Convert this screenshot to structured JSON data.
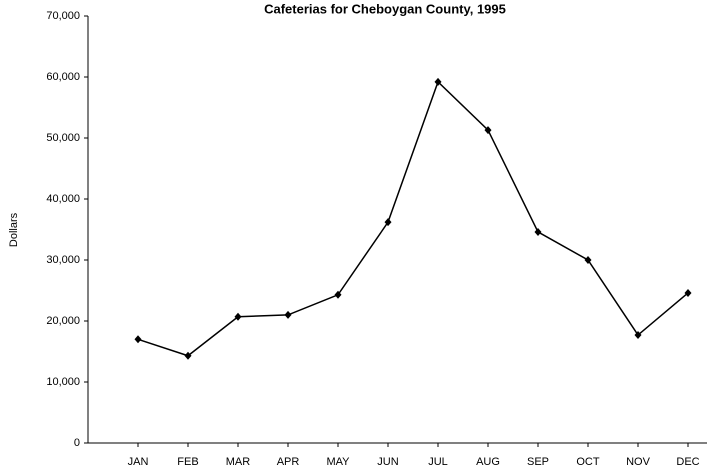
{
  "chart_data": {
    "type": "line",
    "title": "Cafeterias for Cheboygan County, 1995",
    "y_label": "Dollars",
    "categories": [
      "JAN",
      "FEB",
      "MAR",
      "APR",
      "MAY",
      "JUN",
      "JUL",
      "AUG",
      "SEP",
      "OCT",
      "NOV",
      "DEC"
    ],
    "series": [
      {
        "name": "Cafeterias",
        "color": "#000000",
        "values": [
          17000,
          14300,
          20700,
          21000,
          24300,
          36200,
          59200,
          51300,
          34600,
          30000,
          17700,
          24600
        ]
      }
    ],
    "ylim": [
      0,
      70000
    ],
    "yticks": [
      0,
      {
        "value": 10000,
        "label": "10,000"
      },
      {
        "value": 20000,
        "label": "20,000"
      },
      {
        "value": 30000,
        "label": "30,000"
      },
      {
        "value": 40000,
        "label": "40,000"
      },
      {
        "value": 50000,
        "label": "50,000"
      },
      {
        "value": 60000,
        "label": "60,000"
      },
      {
        "value": 70000,
        "label": "70,000"
      }
    ],
    "grid": false
  }
}
